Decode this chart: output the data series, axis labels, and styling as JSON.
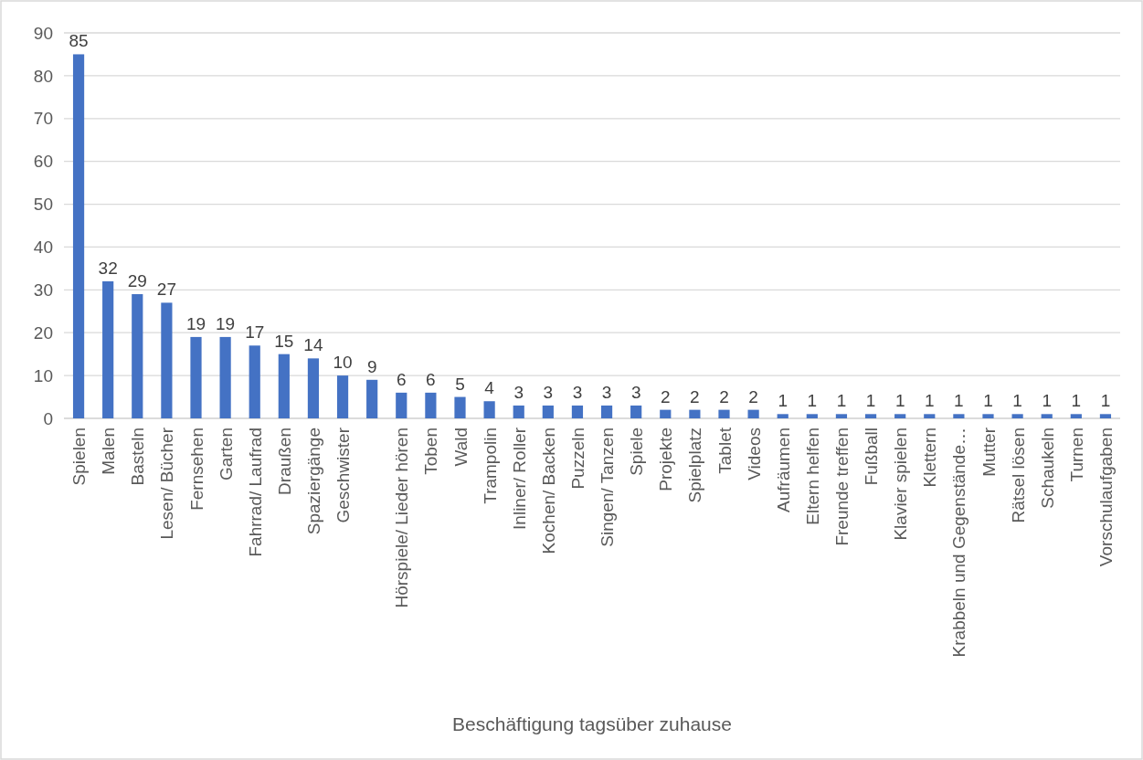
{
  "chart_data": {
    "type": "bar",
    "title": "Beschäftigung tagsüber zuhause",
    "categories": [
      "Spielen",
      "Malen",
      "Basteln",
      "Lesen/ Bücher",
      "Fernsehen",
      "Garten",
      "Fahrrad/ Laufrad",
      "Draußen",
      "Spaziergänge",
      "Geschwister",
      null,
      "Hörspiele/ Lieder hören",
      "Toben",
      "Wald",
      "Trampolin",
      "Inliner/ Roller",
      "Kochen/ Backen",
      "Puzzeln",
      "Singen/ Tanzen",
      "Spiele",
      "Projekte",
      "Spielplatz",
      "Tablet",
      "Videos",
      "Aufräumen",
      "Eltern helfen",
      "Freunde treffen",
      "Fußball",
      "Klavier spielen",
      "Klettern",
      "Krabbeln und Gegenstände…",
      "Mutter",
      "Rätsel lösen",
      "Schaukeln",
      "Turnen",
      "Vorschulaufgaben"
    ],
    "values": [
      85,
      32,
      29,
      27,
      19,
      19,
      17,
      15,
      14,
      10,
      9,
      6,
      6,
      5,
      4,
      3,
      3,
      3,
      3,
      3,
      2,
      2,
      2,
      2,
      1,
      1,
      1,
      1,
      1,
      1,
      1,
      1,
      1,
      1,
      1,
      1
    ],
    "color": "#4472c4",
    "ylim": [
      0,
      90
    ],
    "yticks": [
      0,
      10,
      20,
      30,
      40,
      50,
      60,
      70,
      80,
      90
    ],
    "grid": "y",
    "data_labels": true
  }
}
